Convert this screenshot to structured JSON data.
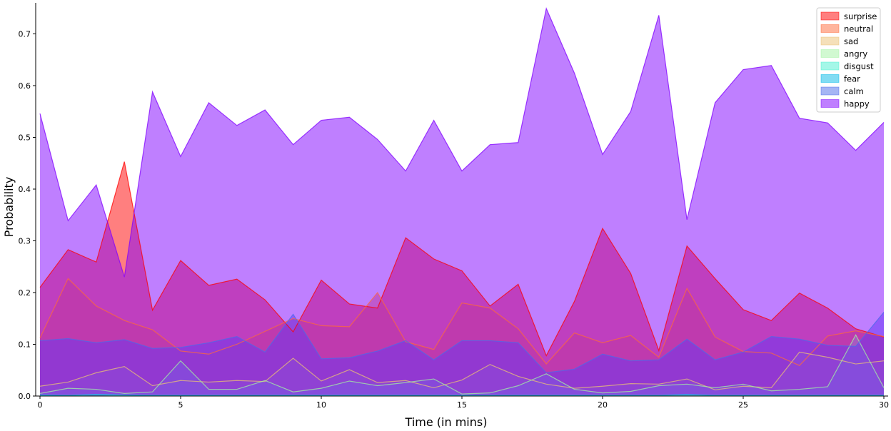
{
  "chart_data": {
    "type": "area",
    "xlabel": "Time (in mins)",
    "ylabel": "Probability",
    "xlim": [
      0,
      30
    ],
    "ylim": [
      0,
      0.76
    ],
    "xticks": [
      0,
      5,
      10,
      15,
      20,
      25,
      30
    ],
    "yticks": [
      0.0,
      0.1,
      0.2,
      0.3,
      0.4,
      0.5,
      0.6,
      0.7
    ],
    "grid": false,
    "legend_position": "top-right",
    "stacked": false,
    "x": [
      0,
      1,
      2,
      3,
      4,
      5,
      6,
      7,
      8,
      9,
      10,
      11,
      12,
      13,
      14,
      15,
      16,
      17,
      18,
      19,
      20,
      21,
      22,
      23,
      24,
      25,
      26,
      27,
      28,
      29,
      30
    ],
    "series": [
      {
        "name": "surprise",
        "color": "#ff0000",
        "values": [
          0.21,
          0.283,
          0.259,
          0.453,
          0.166,
          0.262,
          0.214,
          0.226,
          0.186,
          0.124,
          0.224,
          0.178,
          0.17,
          0.306,
          0.265,
          0.242,
          0.174,
          0.216,
          0.078,
          0.183,
          0.324,
          0.237,
          0.088,
          0.29,
          0.227,
          0.167,
          0.146,
          0.199,
          0.17,
          0.13,
          0.114
        ]
      },
      {
        "name": "neutral",
        "color": "#ff6a39",
        "values": [
          0.112,
          0.227,
          0.174,
          0.146,
          0.128,
          0.087,
          0.081,
          0.1,
          0.125,
          0.15,
          0.136,
          0.134,
          0.2,
          0.105,
          0.09,
          0.18,
          0.17,
          0.13,
          0.062,
          0.122,
          0.103,
          0.117,
          0.075,
          0.208,
          0.114,
          0.086,
          0.083,
          0.059,
          0.116,
          0.126,
          0.115
        ]
      },
      {
        "name": "sad",
        "color": "#ebc274",
        "values": [
          0.019,
          0.027,
          0.045,
          0.057,
          0.02,
          0.03,
          0.027,
          0.03,
          0.028,
          0.073,
          0.029,
          0.051,
          0.026,
          0.03,
          0.016,
          0.031,
          0.061,
          0.038,
          0.023,
          0.015,
          0.019,
          0.024,
          0.023,
          0.033,
          0.012,
          0.019,
          0.016,
          0.085,
          0.075,
          0.062,
          0.068
        ]
      },
      {
        "name": "angry",
        "color": "#a3f3a3",
        "values": [
          0.005,
          0.015,
          0.013,
          0.005,
          0.008,
          0.068,
          0.013,
          0.013,
          0.03,
          0.008,
          0.015,
          0.029,
          0.02,
          0.026,
          0.033,
          0.004,
          0.006,
          0.02,
          0.043,
          0.013,
          0.006,
          0.009,
          0.02,
          0.023,
          0.016,
          0.023,
          0.01,
          0.013,
          0.018,
          0.118,
          0.016
        ]
      },
      {
        "name": "disgust",
        "color": "#49f0d1",
        "values": [
          0.001,
          0.001,
          0.002,
          0.001,
          0.001,
          0.001,
          0.001,
          0.001,
          0.001,
          0.001,
          0.001,
          0.001,
          0.001,
          0.001,
          0.001,
          0.001,
          0.001,
          0.001,
          0.001,
          0.001,
          0.001,
          0.001,
          0.001,
          0.001,
          0.001,
          0.001,
          0.001,
          0.001,
          0.001,
          0.001,
          0.001
        ]
      },
      {
        "name": "fear",
        "color": "#04b9e7",
        "values": [
          0.002,
          0.001,
          0.003,
          0.002,
          0.001,
          0.001,
          0.001,
          0.001,
          0.001,
          0.001,
          0.001,
          0.001,
          0.001,
          0.001,
          0.001,
          0.001,
          0.001,
          0.001,
          0.001,
          0.001,
          0.001,
          0.001,
          0.001,
          0.003,
          0.001,
          0.001,
          0.001,
          0.001,
          0.001,
          0.001,
          0.001
        ]
      },
      {
        "name": "calm",
        "color": "#4b6bea",
        "values": [
          0.107,
          0.111,
          0.103,
          0.109,
          0.092,
          0.094,
          0.103,
          0.115,
          0.085,
          0.158,
          0.072,
          0.074,
          0.087,
          0.107,
          0.07,
          0.107,
          0.107,
          0.103,
          0.045,
          0.052,
          0.081,
          0.068,
          0.07,
          0.11,
          0.07,
          0.085,
          0.115,
          0.11,
          0.098,
          0.096,
          0.162
        ]
      },
      {
        "name": "happy",
        "color": "#8000ff",
        "values": [
          0.546,
          0.339,
          0.408,
          0.23,
          0.588,
          0.463,
          0.567,
          0.523,
          0.553,
          0.486,
          0.533,
          0.539,
          0.496,
          0.435,
          0.533,
          0.435,
          0.486,
          0.49,
          0.749,
          0.624,
          0.467,
          0.55,
          0.736,
          0.341,
          0.567,
          0.631,
          0.639,
          0.537,
          0.528,
          0.475,
          0.529
        ]
      }
    ]
  }
}
